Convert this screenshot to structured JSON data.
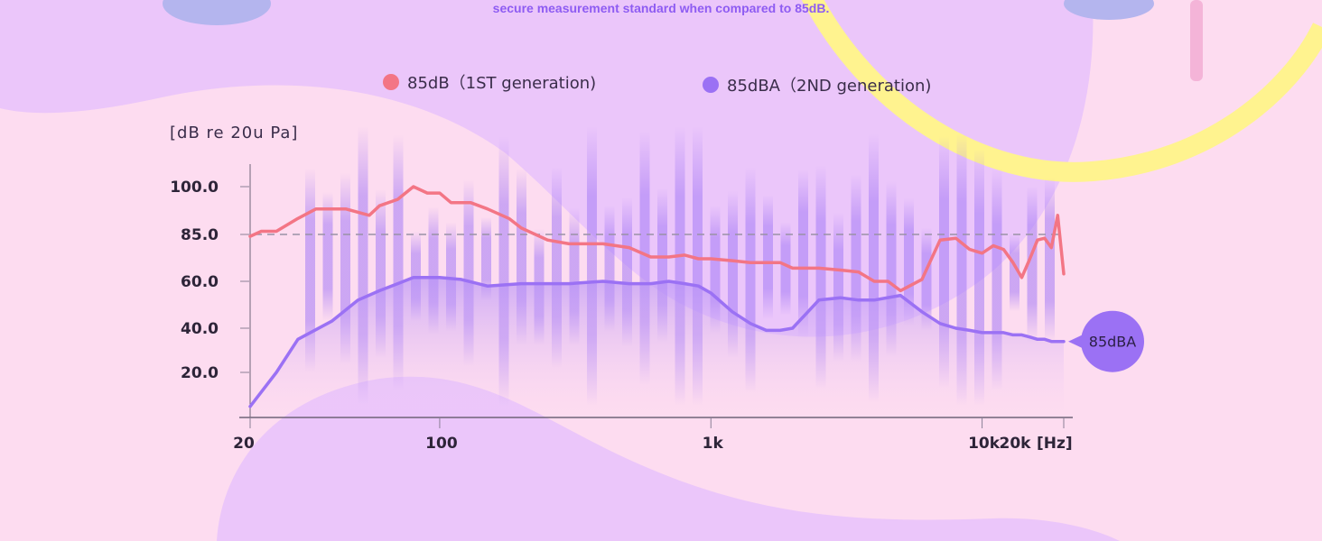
{
  "caption": "secure measurement standard when compared to 85dB.",
  "legend": [
    {
      "label": "85dB（1ST generation)",
      "color": "#f37585"
    },
    {
      "label": "85dBA（2ND generation)",
      "color": "#9b71f4"
    }
  ],
  "colors": {
    "background": "#fddcf0",
    "blob": "#ebc6fa",
    "ring": "#fff38f",
    "bubble": "#9b71f4"
  },
  "chart_data": {
    "type": "line",
    "ylabel": "[dB re 20u Pa]",
    "xlabel": "[Hz]",
    "x_scale": "log",
    "xlim": [
      20,
      20000
    ],
    "ylim": [
      0,
      110
    ],
    "x_ticks": [
      {
        "value": 20,
        "label": "20"
      },
      {
        "value": 100,
        "label": "100"
      },
      {
        "value": 1000,
        "label": "1k"
      },
      {
        "value": 10000,
        "label": "10k"
      },
      {
        "value": 20000,
        "label": "20k"
      }
    ],
    "y_ticks": [
      {
        "value": 20,
        "label": "20.0"
      },
      {
        "value": 40,
        "label": "40.0"
      },
      {
        "value": 60,
        "label": "60.0"
      },
      {
        "value": 85,
        "label": "85.0"
      },
      {
        "value": 100,
        "label": "100.0"
      }
    ],
    "reference_line": 85,
    "bubble_label": "85dBA",
    "series": [
      {
        "name": "85dB（1ST generation)",
        "color": "#f37585",
        "x": [
          20,
          22,
          25,
          30,
          35,
          45,
          55,
          60,
          70,
          80,
          90,
          100,
          110,
          130,
          150,
          180,
          200,
          250,
          300,
          400,
          500,
          600,
          700,
          800,
          900,
          1000,
          1200,
          1400,
          1600,
          1800,
          2000,
          2500,
          3000,
          3500,
          4000,
          4500,
          5000,
          6000,
          7000,
          8000,
          9000,
          10000,
          11000,
          12000,
          13000,
          14000,
          15000,
          16000,
          17000,
          18000,
          19000,
          20000
        ],
        "y": [
          84,
          86,
          86,
          90,
          93,
          93,
          91,
          94,
          96,
          100,
          98,
          98,
          95,
          95,
          93,
          90,
          87,
          82,
          80,
          80,
          78,
          73,
          73,
          74,
          72,
          72,
          71,
          70,
          70,
          70,
          67,
          67,
          66,
          65,
          60,
          60,
          56,
          61,
          82,
          83,
          77,
          75,
          79,
          77,
          70,
          62,
          72,
          82,
          83,
          78,
          91,
          64
        ]
      },
      {
        "name": "85dBA（2ND generation)",
        "color": "#9b71f4",
        "x": [
          20,
          25,
          30,
          40,
          50,
          60,
          70,
          80,
          100,
          120,
          150,
          200,
          250,
          300,
          400,
          500,
          600,
          700,
          800,
          900,
          1000,
          1200,
          1400,
          1600,
          1800,
          2000,
          2500,
          3000,
          3500,
          4000,
          5000,
          6000,
          7000,
          8000,
          9000,
          10000,
          11000,
          12000,
          13000,
          14000,
          15000,
          16000,
          17000,
          18000,
          19000,
          20000
        ],
        "y": [
          6,
          20,
          35,
          43,
          52,
          56,
          59,
          62,
          62,
          61,
          58,
          59,
          59,
          59,
          60,
          59,
          59,
          60,
          59,
          58,
          55,
          47,
          42,
          39,
          39,
          40,
          52,
          53,
          52,
          52,
          54,
          47,
          42,
          40,
          39,
          38,
          38,
          38,
          37,
          37,
          36,
          35,
          35,
          34,
          34,
          34
        ]
      }
    ]
  }
}
